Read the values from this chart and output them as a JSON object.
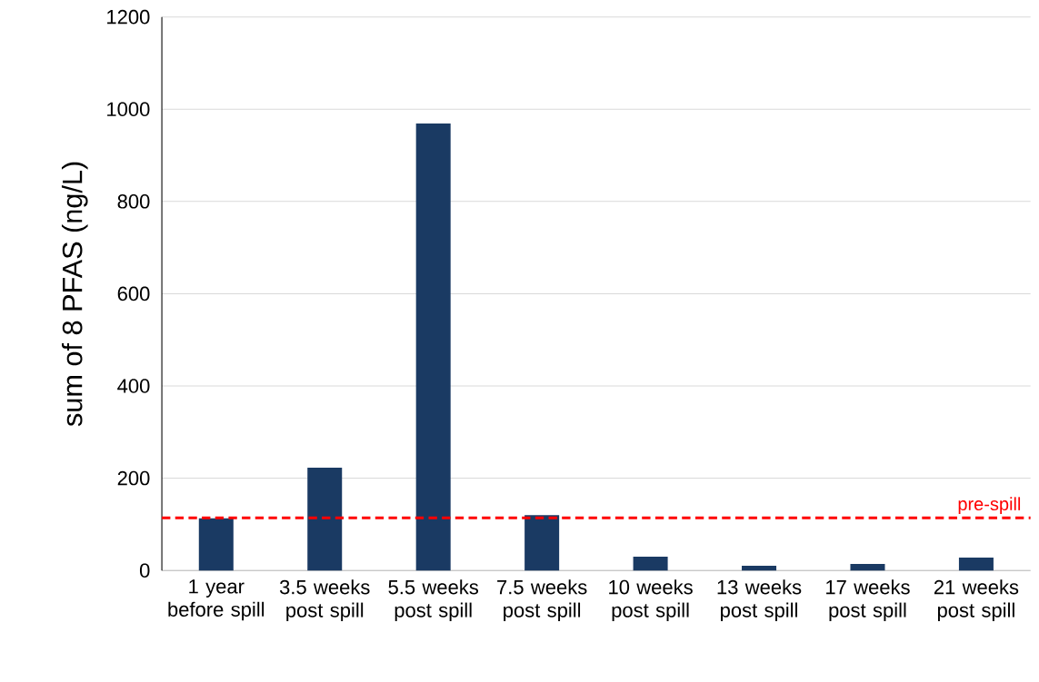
{
  "chart_data": {
    "type": "bar",
    "ylabel": "sum of 8 PFAS (ng/L)",
    "categories": [
      "1 year before spill",
      "3.5 weeks post spill",
      "5.5 weeks post spill",
      "7.5 weeks post spill",
      "10 weeks post spill",
      "13 weeks post spill",
      "17 weeks post spill",
      "21 weeks post spill"
    ],
    "values": [
      113,
      223,
      969,
      120,
      30,
      10,
      14,
      28
    ],
    "color": "#1a3a63",
    "ylim": [
      0,
      1200
    ],
    "yticks": [
      0,
      200,
      400,
      600,
      800,
      1000,
      1200
    ],
    "grid": "y",
    "ref_lines": [
      {
        "axis": "y",
        "value": 114,
        "label": "pre-spill",
        "color": "#ff0000",
        "line_style": "dashed"
      }
    ]
  }
}
